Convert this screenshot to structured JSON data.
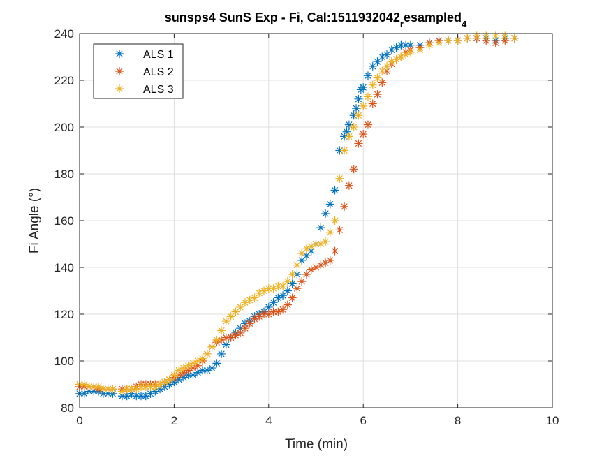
{
  "chart_data": {
    "type": "scatter",
    "title": "sunsps4 SunS Exp - Fi, Cal:1511932042",
    "title_subscript_1": "r",
    "title_middle": "esampled",
    "title_subscript_2": "4",
    "xlabel": "Time (min)",
    "ylabel": "Fi Angle (°)",
    "xlim": [
      0,
      10
    ],
    "ylim": [
      80,
      240
    ],
    "xticks": [
      "0",
      "2",
      "4",
      "6",
      "8",
      "10"
    ],
    "yticks": [
      "80",
      "100",
      "120",
      "140",
      "160",
      "180",
      "200",
      "220",
      "240"
    ],
    "grid": true,
    "legend_position": "top-left",
    "marker": "asterisk",
    "series": [
      {
        "name": "ALS 1",
        "color": "#0072BD",
        "x": [
          0.0,
          0.1,
          0.2,
          0.3,
          0.4,
          0.5,
          0.6,
          0.7,
          0.9,
          1.0,
          1.1,
          1.2,
          1.3,
          1.4,
          1.5,
          1.6,
          1.7,
          1.8,
          1.9,
          2.0,
          2.1,
          2.2,
          2.3,
          2.4,
          2.5,
          2.6,
          2.7,
          2.8,
          2.9,
          3.0,
          3.1,
          3.2,
          3.3,
          3.4,
          3.5,
          3.6,
          3.7,
          3.8,
          3.9,
          4.0,
          4.1,
          4.2,
          4.3,
          4.4,
          4.5,
          4.6,
          4.7,
          4.8,
          4.9,
          5.0,
          5.1,
          5.2,
          5.3,
          5.4,
          5.5,
          5.6,
          5.65,
          5.7,
          5.8,
          5.85,
          5.9,
          5.95,
          6.0,
          6.1,
          6.2,
          6.3,
          6.4,
          6.5,
          6.6,
          6.7,
          6.8,
          6.9,
          7.0,
          7.2,
          7.4,
          7.6,
          7.8,
          8.0,
          8.2,
          8.4,
          8.6,
          8.8,
          9.0,
          9.2
        ],
        "y": [
          86,
          86,
          87,
          87,
          87,
          86,
          86,
          86,
          85,
          85,
          86,
          85,
          85,
          85,
          86,
          87,
          88,
          89,
          90,
          91,
          92,
          93,
          94,
          94,
          95,
          96,
          96,
          97,
          99,
          103,
          107,
          110,
          112,
          114,
          116,
          117,
          119,
          120,
          121,
          123,
          125,
          127,
          128,
          130,
          133,
          137,
          143,
          145,
          147,
          150,
          157,
          163,
          167,
          173,
          190,
          196,
          198,
          201,
          205,
          208,
          212,
          216,
          217,
          222,
          226,
          228,
          230,
          231,
          233,
          234,
          235,
          235,
          235,
          235,
          236,
          237,
          237,
          237,
          238,
          238,
          238,
          237,
          238,
          238
        ]
      },
      {
        "name": "ALS 2",
        "color": "#D95319",
        "x": [
          0.0,
          0.1,
          0.2,
          0.3,
          0.4,
          0.5,
          0.6,
          0.7,
          0.9,
          1.0,
          1.1,
          1.2,
          1.3,
          1.4,
          1.5,
          1.6,
          1.7,
          1.8,
          1.9,
          2.0,
          2.1,
          2.2,
          2.3,
          2.4,
          2.5,
          2.6,
          2.7,
          2.8,
          2.9,
          3.0,
          3.1,
          3.2,
          3.3,
          3.4,
          3.5,
          3.6,
          3.7,
          3.8,
          3.9,
          4.0,
          4.1,
          4.2,
          4.3,
          4.4,
          4.5,
          4.6,
          4.7,
          4.8,
          4.9,
          5.0,
          5.1,
          5.2,
          5.3,
          5.4,
          5.5,
          5.6,
          5.7,
          5.8,
          5.9,
          6.0,
          6.1,
          6.2,
          6.3,
          6.4,
          6.5,
          6.6,
          6.7,
          6.8,
          6.9,
          7.0,
          7.2,
          7.4,
          7.6,
          7.8,
          8.0,
          8.2,
          8.4,
          8.6,
          8.8,
          9.0,
          9.2
        ],
        "y": [
          89,
          89,
          89,
          89,
          88,
          88,
          88,
          88,
          88,
          88,
          88,
          89,
          90,
          90,
          90,
          90,
          90,
          91,
          92,
          93,
          94,
          95,
          96,
          97,
          98,
          100,
          103,
          106,
          108,
          109,
          110,
          110,
          111,
          112,
          114,
          116,
          118,
          119,
          120,
          120,
          121,
          121,
          122,
          124,
          127,
          131,
          134,
          137,
          139,
          140,
          141,
          142,
          143,
          147,
          156,
          166,
          175,
          182,
          193,
          197,
          201,
          210,
          214,
          219,
          224,
          227,
          229,
          230,
          232,
          233,
          234,
          236,
          237,
          237,
          237,
          238,
          238,
          237,
          236,
          237,
          238
        ]
      },
      {
        "name": "ALS 3",
        "color": "#EDB120",
        "x": [
          0.0,
          0.1,
          0.2,
          0.3,
          0.4,
          0.5,
          0.6,
          0.7,
          0.9,
          1.0,
          1.1,
          1.2,
          1.3,
          1.4,
          1.5,
          1.6,
          1.7,
          1.8,
          1.9,
          2.0,
          2.1,
          2.2,
          2.3,
          2.4,
          2.5,
          2.6,
          2.7,
          2.8,
          2.9,
          3.0,
          3.1,
          3.2,
          3.3,
          3.4,
          3.5,
          3.6,
          3.7,
          3.8,
          3.9,
          4.0,
          4.1,
          4.2,
          4.3,
          4.4,
          4.5,
          4.6,
          4.7,
          4.8,
          4.9,
          5.0,
          5.1,
          5.2,
          5.3,
          5.4,
          5.5,
          5.6,
          5.7,
          5.8,
          5.9,
          6.0,
          6.1,
          6.2,
          6.3,
          6.4,
          6.5,
          6.6,
          6.7,
          6.8,
          6.9,
          7.0,
          7.2,
          7.4,
          7.6,
          7.8,
          8.0,
          8.2,
          8.4,
          8.6,
          8.8,
          9.0,
          9.2
        ],
        "y": [
          90,
          90,
          89,
          89,
          89,
          88,
          88,
          88,
          87,
          88,
          88,
          88,
          89,
          89,
          89,
          89,
          90,
          91,
          92,
          94,
          96,
          97,
          98,
          99,
          100,
          101,
          103,
          106,
          109,
          113,
          117,
          119,
          121,
          123,
          125,
          126,
          127,
          129,
          130,
          131,
          131,
          132,
          132,
          134,
          137,
          141,
          146,
          148,
          149,
          150,
          150,
          151,
          155,
          160,
          178,
          190,
          196,
          200,
          205,
          209,
          213,
          218,
          221,
          224,
          226,
          228,
          229,
          230,
          231,
          232,
          233,
          235,
          236,
          237,
          237,
          238,
          239,
          239,
          239,
          239,
          238
        ]
      }
    ]
  }
}
